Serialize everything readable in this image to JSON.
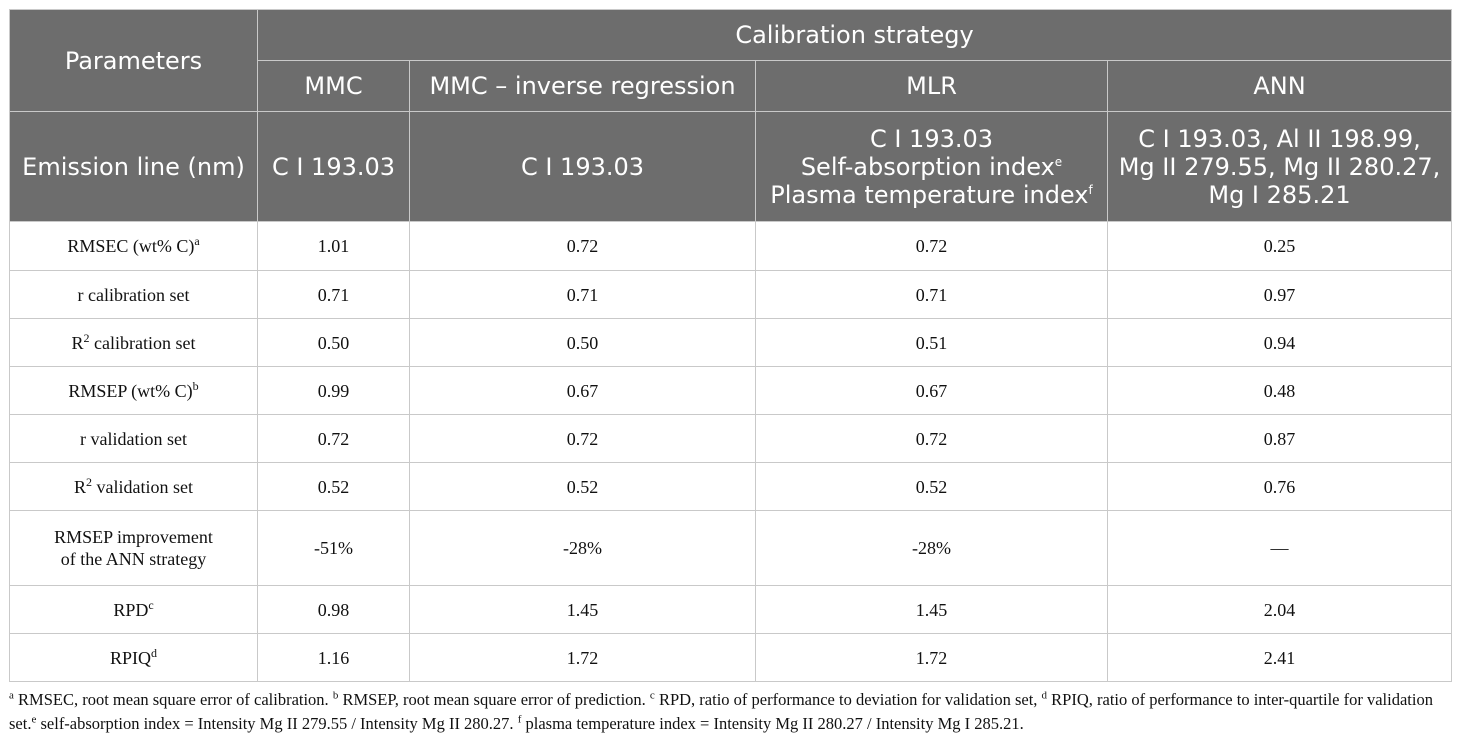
{
  "header": {
    "parameters": "Parameters",
    "group": "Calibration strategy",
    "methods": [
      "MMC",
      "MMC – inverse regression",
      "MLR",
      "ANN"
    ],
    "emission_label": "Emission line (nm)",
    "emission": {
      "mmc": "C I 193.03",
      "mmc_inv": "C I 193.03",
      "mlr_line1": "C I 193.03",
      "mlr_line2": "Self-absorption index",
      "mlr_line2_sup": "e",
      "mlr_line3": "Plasma temperature index",
      "mlr_line3_sup": "f",
      "ann_line1": "C I 193.03, Al II 198.99,",
      "ann_line2": "Mg II 279.55, Mg II 280.27,",
      "ann_line3": "Mg I 285.21"
    }
  },
  "rows": [
    {
      "label": "RMSEC (wt% C)",
      "sup": "a",
      "values": [
        "1.01",
        "0.72",
        "0.72",
        "0.25"
      ]
    },
    {
      "label": "r calibration set",
      "values": [
        "0.71",
        "0.71",
        "0.71",
        "0.97"
      ]
    },
    {
      "label_pre": "R",
      "label_sup": "2",
      "label_post": " calibration set",
      "values": [
        "0.50",
        "0.50",
        "0.51",
        "0.94"
      ]
    },
    {
      "label": "RMSEP (wt% C)",
      "sup": "b",
      "values": [
        "0.99",
        "0.67",
        "0.67",
        "0.48"
      ]
    },
    {
      "label": "r validation set",
      "values": [
        "0.72",
        "0.72",
        "0.72",
        "0.87"
      ]
    },
    {
      "label_pre": "R",
      "label_sup": "2",
      "label_post": " validation set",
      "values": [
        "0.52",
        "0.52",
        "0.52",
        "0.76"
      ]
    },
    {
      "label_line1": "RMSEP improvement",
      "label_line2": "of the ANN strategy",
      "values": [
        "-51%",
        "-28%",
        "-28%",
        "—"
      ]
    },
    {
      "label": "RPD",
      "sup": "c",
      "values": [
        "0.98",
        "1.45",
        "1.45",
        "2.04"
      ]
    },
    {
      "label": "RPIQ",
      "sup": "d",
      "values": [
        "1.16",
        "1.72",
        "1.72",
        "2.41"
      ]
    }
  ],
  "footnotes": {
    "a_mark": "a",
    "a_text": " RMSEC, root mean square error of calibration. ",
    "b_mark": "b",
    "b_text": " RMSEP, root mean square error of prediction. ",
    "c_mark": "c",
    "c_text": " RPD, ratio of performance to deviation for validation set, ",
    "d_mark": "d",
    "d_text": " RPIQ, ratio of performance to inter-quartile for validation set.",
    "e_mark": "e",
    "e_text": " self-absorption index = Intensity Mg II 279.55 / Intensity Mg II 280.27. ",
    "f_mark": "f",
    "f_text": " plasma temperature index = Intensity Mg II 280.27 / Intensity Mg I 285.21."
  }
}
